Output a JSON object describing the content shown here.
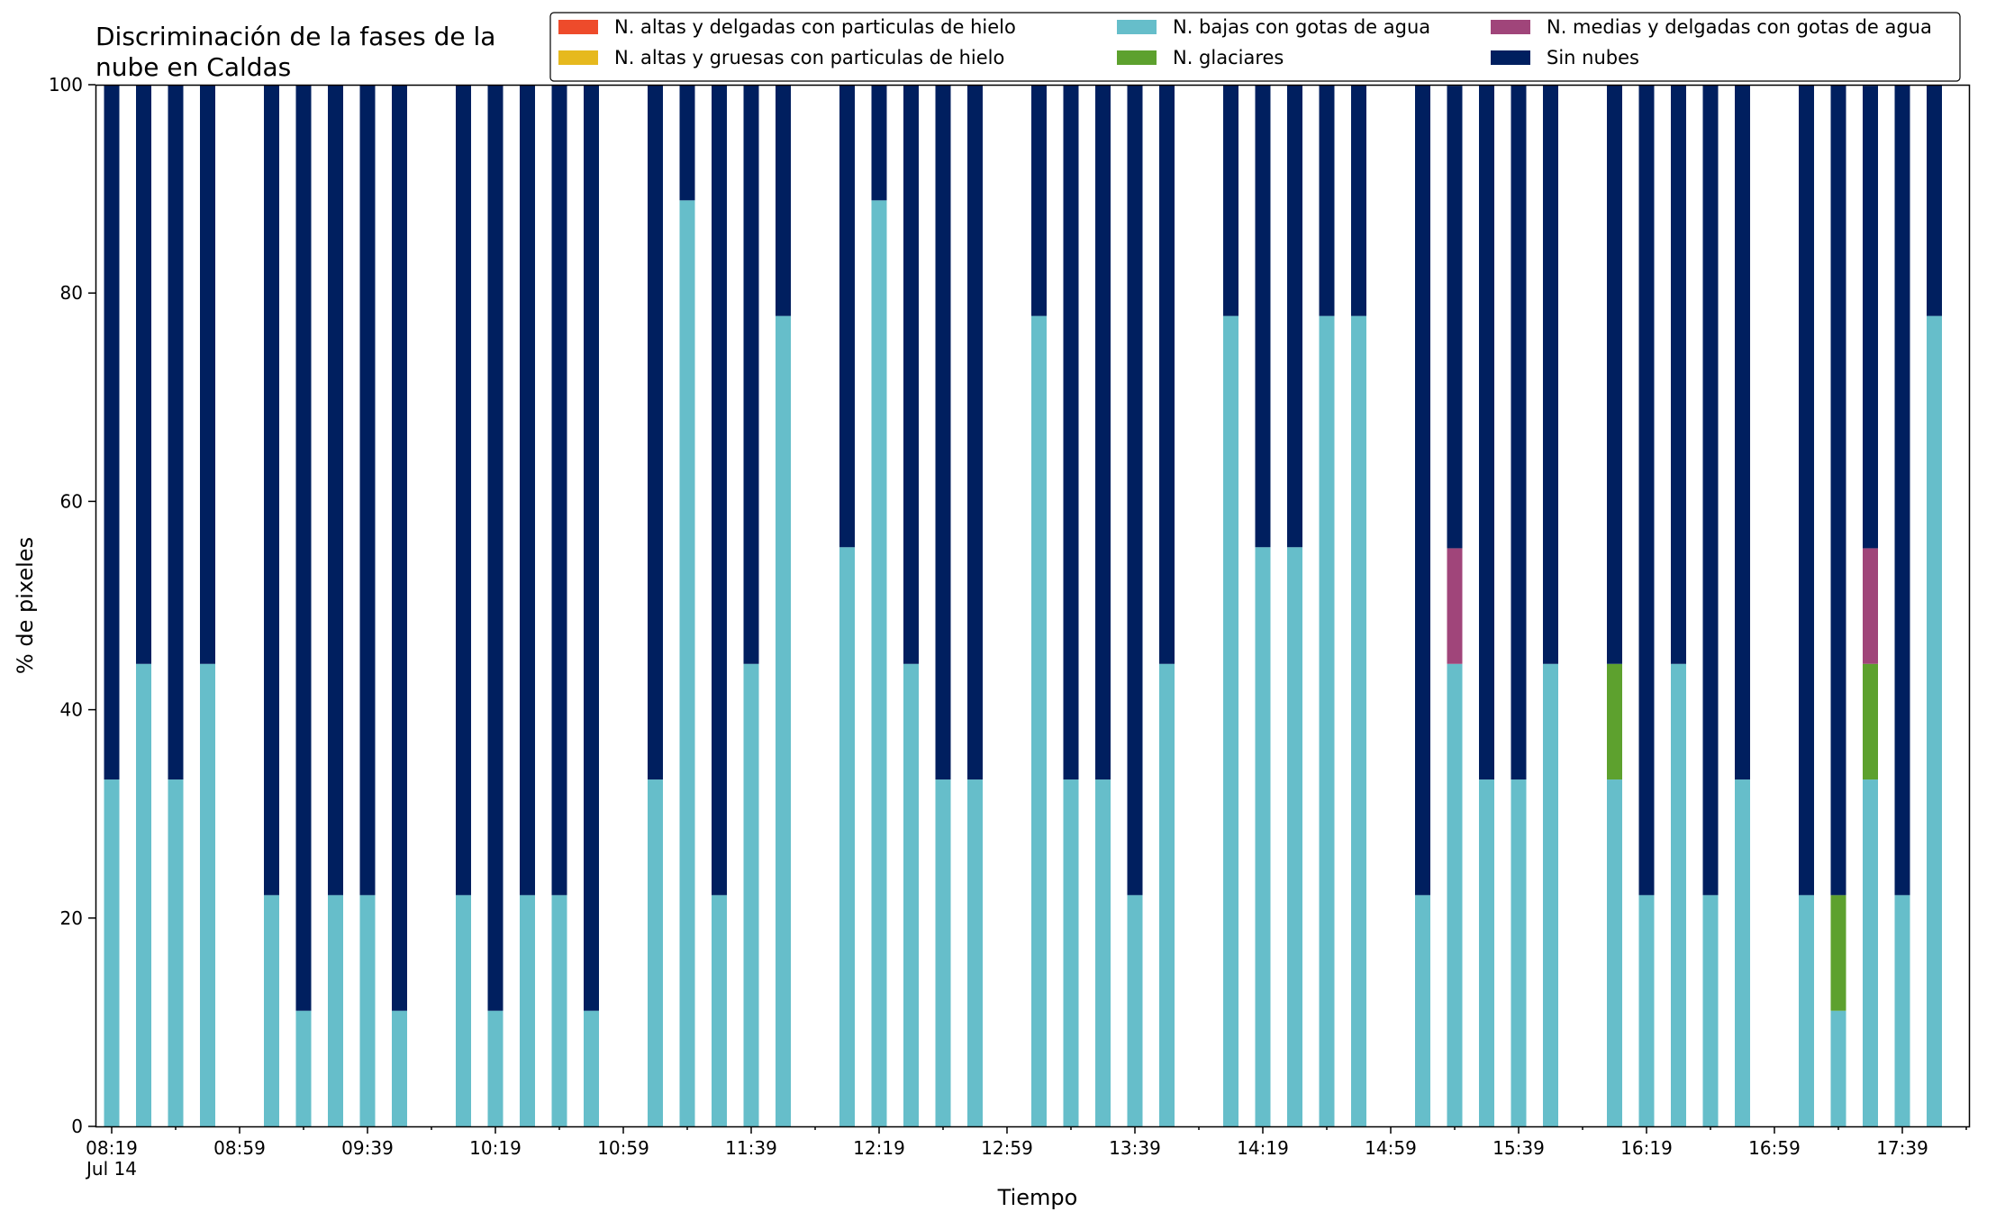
{
  "chart_data": {
    "type": "bar",
    "stacked": true,
    "title": "Discriminación de la fases de la\nnube en Caldas",
    "xlabel": "Tiempo",
    "ylabel": "% de pixeles",
    "ylim": [
      0,
      100
    ],
    "yticks": [
      0,
      20,
      40,
      60,
      80,
      100
    ],
    "grid": false,
    "legend_position": "top-right",
    "x_start": "08:19",
    "x_step_minutes": 10,
    "x_tick_labels": [
      "08:19",
      "08:59",
      "09:39",
      "10:19",
      "10:59",
      "11:39",
      "12:19",
      "12:59",
      "13:39",
      "14:19",
      "14:59",
      "15:39",
      "16:19",
      "16:59",
      "17:39"
    ],
    "x_tick_sublabel": "Jul 14",
    "categories": [
      "08:19",
      "08:29",
      "08:39",
      "08:49",
      "08:59",
      "09:09",
      "09:19",
      "09:29",
      "09:39",
      "09:49",
      "09:59",
      "10:09",
      "10:19",
      "10:29",
      "10:39",
      "10:49",
      "10:59",
      "11:09",
      "11:19",
      "11:29",
      "11:39",
      "11:49",
      "11:59",
      "12:09",
      "12:19",
      "12:29",
      "12:39",
      "12:49",
      "12:59",
      "13:09",
      "13:19",
      "13:29",
      "13:39",
      "13:49",
      "13:59",
      "14:09",
      "14:19",
      "14:29",
      "14:39",
      "14:49",
      "14:59",
      "15:09",
      "15:19",
      "15:29",
      "15:39",
      "15:49",
      "15:59",
      "16:09",
      "16:19",
      "16:29",
      "16:39",
      "16:49",
      "16:59",
      "17:09",
      "17:19",
      "17:29",
      "17:39",
      "17:49"
    ],
    "series": [
      {
        "name": "N. altas y delgadas con particulas de hielo",
        "color": "#EE4B2B",
        "values": [
          0,
          0,
          0,
          0,
          null,
          0,
          0,
          0,
          0,
          0,
          null,
          0,
          0,
          0,
          0,
          0,
          null,
          0,
          0,
          0,
          0,
          0,
          null,
          0,
          0,
          0,
          0,
          0,
          null,
          0,
          0,
          0,
          0,
          0,
          null,
          0,
          0,
          0,
          0,
          0,
          null,
          0,
          0,
          0,
          0,
          0,
          null,
          0,
          0,
          0,
          0,
          0,
          null,
          0,
          0,
          0,
          0,
          0
        ]
      },
      {
        "name": "N. altas y gruesas con particulas de hielo",
        "color": "#E6B91E",
        "values": [
          0,
          0,
          0,
          0,
          null,
          0,
          0,
          0,
          0,
          0,
          null,
          0,
          0,
          0,
          0,
          0,
          null,
          0,
          0,
          0,
          0,
          0,
          null,
          0,
          0,
          0,
          0,
          0,
          null,
          0,
          0,
          0,
          0,
          0,
          null,
          0,
          0,
          0,
          0,
          0,
          null,
          0,
          0,
          0,
          0,
          0,
          null,
          0,
          0,
          0,
          0,
          0,
          null,
          0,
          0,
          0,
          0,
          0
        ]
      },
      {
        "name": "N. bajas con gotas de agua",
        "color": "#66BECA",
        "values": [
          33.3,
          44.4,
          33.3,
          44.4,
          null,
          22.2,
          11.1,
          22.2,
          22.2,
          11.1,
          null,
          22.2,
          11.1,
          22.2,
          22.2,
          11.1,
          null,
          33.3,
          88.9,
          22.2,
          44.4,
          77.8,
          null,
          55.6,
          88.9,
          44.4,
          33.3,
          33.3,
          null,
          77.8,
          33.3,
          33.3,
          22.2,
          44.4,
          null,
          77.8,
          55.6,
          55.6,
          77.8,
          77.8,
          null,
          22.2,
          44.4,
          33.3,
          33.3,
          44.4,
          null,
          33.3,
          22.2,
          44.4,
          22.2,
          33.3,
          null,
          22.2,
          11.1,
          33.3,
          22.2,
          77.8
        ]
      },
      {
        "name": "N. glaciares",
        "color": "#5DA12E",
        "values": [
          0,
          0,
          0,
          0,
          null,
          0,
          0,
          0,
          0,
          0,
          null,
          0,
          0,
          0,
          0,
          0,
          null,
          0,
          0,
          0,
          0,
          0,
          null,
          0,
          0,
          0,
          0,
          0,
          null,
          0,
          0,
          0,
          0,
          0,
          null,
          0,
          0,
          0,
          0,
          0,
          null,
          0,
          0,
          0,
          0,
          0,
          null,
          11.1,
          0,
          0,
          0,
          0,
          null,
          0,
          11.1,
          11.1,
          0,
          0
        ]
      },
      {
        "name": "N. medias y delgadas con gotas de agua",
        "color": "#A0457A",
        "values": [
          0,
          0,
          0,
          0,
          null,
          0,
          0,
          0,
          0,
          0,
          null,
          0,
          0,
          0,
          0,
          0,
          null,
          0,
          0,
          0,
          0,
          0,
          null,
          0,
          0,
          0,
          0,
          0,
          null,
          0,
          0,
          0,
          0,
          0,
          null,
          0,
          0,
          0,
          0,
          0,
          null,
          0,
          11.1,
          0,
          0,
          0,
          null,
          0,
          0,
          0,
          0,
          0,
          null,
          0,
          0,
          11.1,
          0,
          0
        ]
      },
      {
        "name": "Sin nubes",
        "color": "#001F5F",
        "values": [
          66.7,
          55.6,
          66.7,
          55.6,
          null,
          77.8,
          88.9,
          77.8,
          77.8,
          88.9,
          null,
          77.8,
          88.9,
          77.8,
          77.8,
          88.9,
          null,
          66.7,
          11.1,
          77.8,
          55.6,
          22.2,
          null,
          44.4,
          11.1,
          55.6,
          66.7,
          66.7,
          null,
          22.2,
          66.7,
          66.7,
          77.8,
          55.6,
          null,
          22.2,
          44.4,
          44.4,
          22.2,
          22.2,
          null,
          77.8,
          44.4,
          66.7,
          66.7,
          55.6,
          null,
          55.6,
          77.8,
          55.6,
          77.8,
          66.7,
          null,
          77.8,
          77.8,
          44.4,
          77.8,
          22.2
        ]
      }
    ]
  }
}
